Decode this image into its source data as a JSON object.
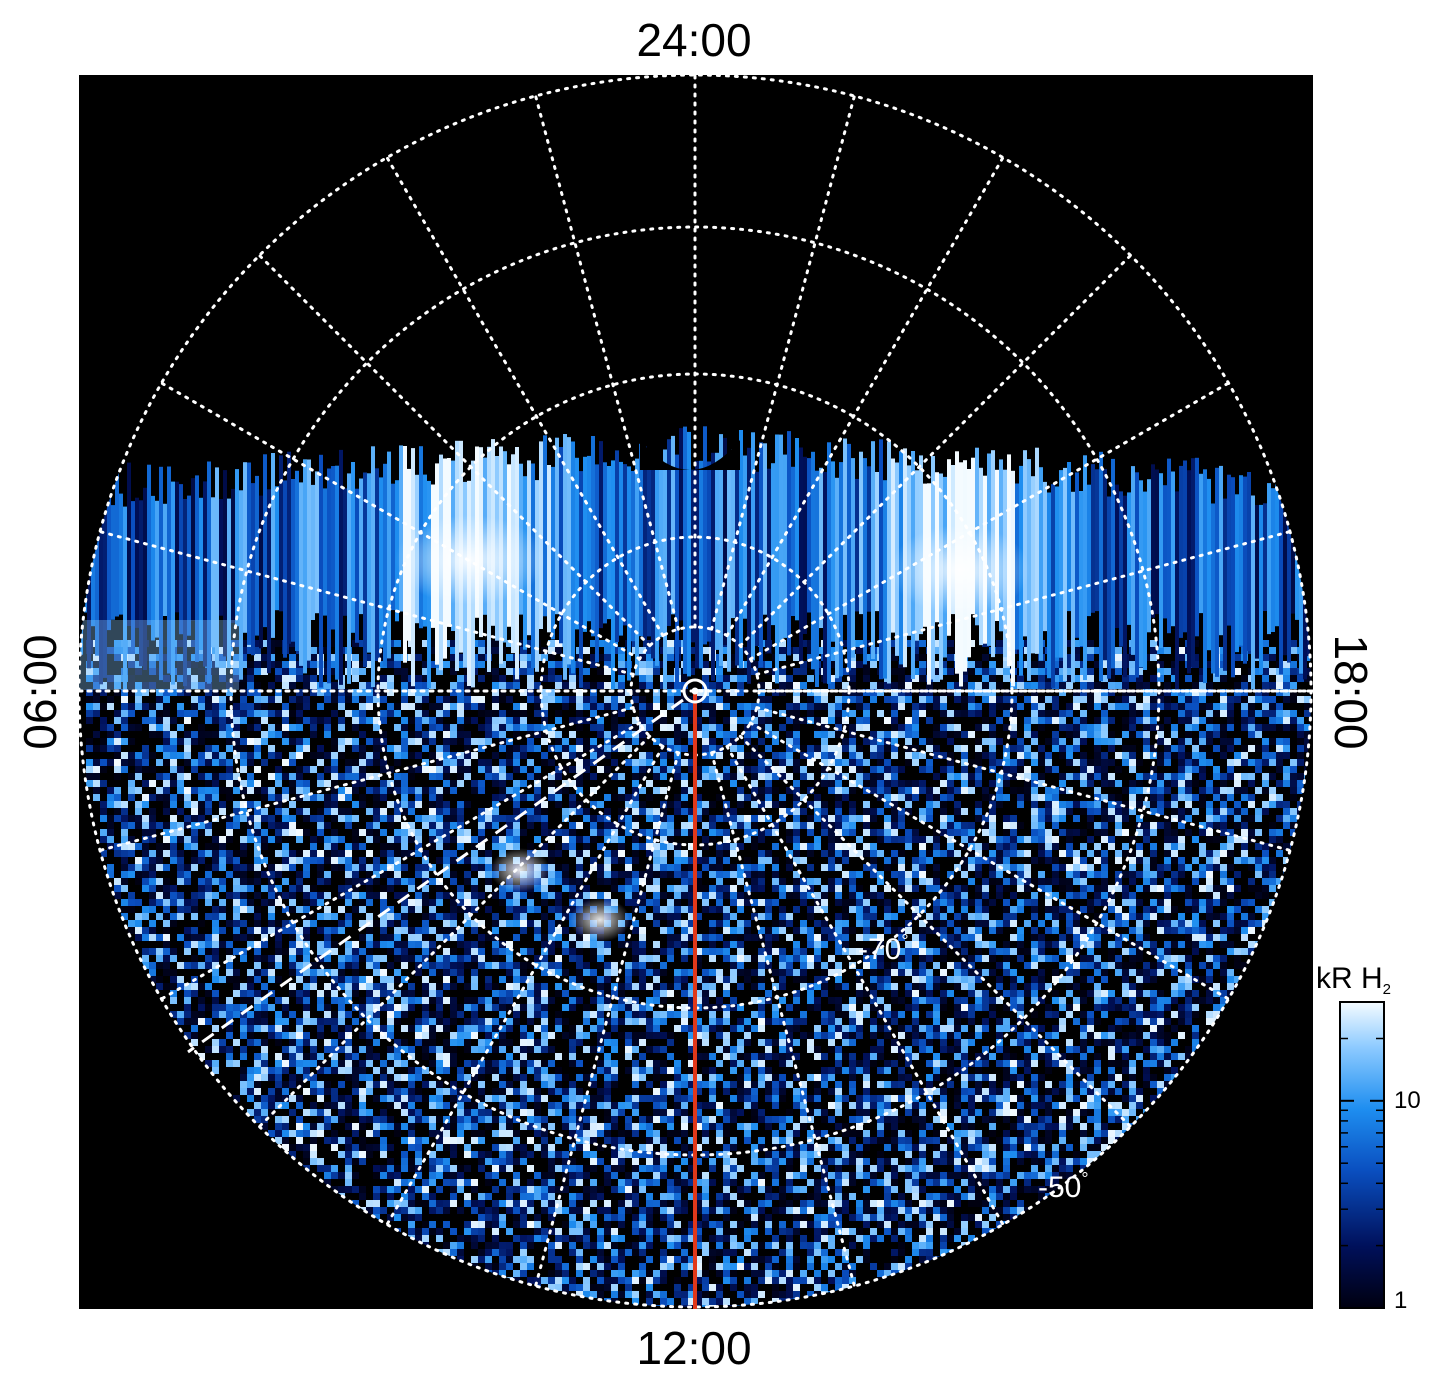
{
  "local_time_labels": {
    "top": "24:00",
    "bottom": "12:00",
    "left": "06:00",
    "right": "18:00"
  },
  "latitude_labels": {
    "inner": "-70",
    "outer": "-50",
    "degree_symbol": "°"
  },
  "colorbar": {
    "title_main": "kR H",
    "title_subscript": "2",
    "tick_labels": [
      "10",
      "1"
    ],
    "gradient_colors": [
      "#000010",
      "#00105a",
      "#0a4fc0",
      "#1e8ef0",
      "#8ccaff",
      "#f4fbff"
    ]
  },
  "plot_colors": {
    "background": "#000000",
    "grid": "#ffffff",
    "meridian_line": "#e0381a",
    "emission_base": "#1e8ef0"
  }
}
